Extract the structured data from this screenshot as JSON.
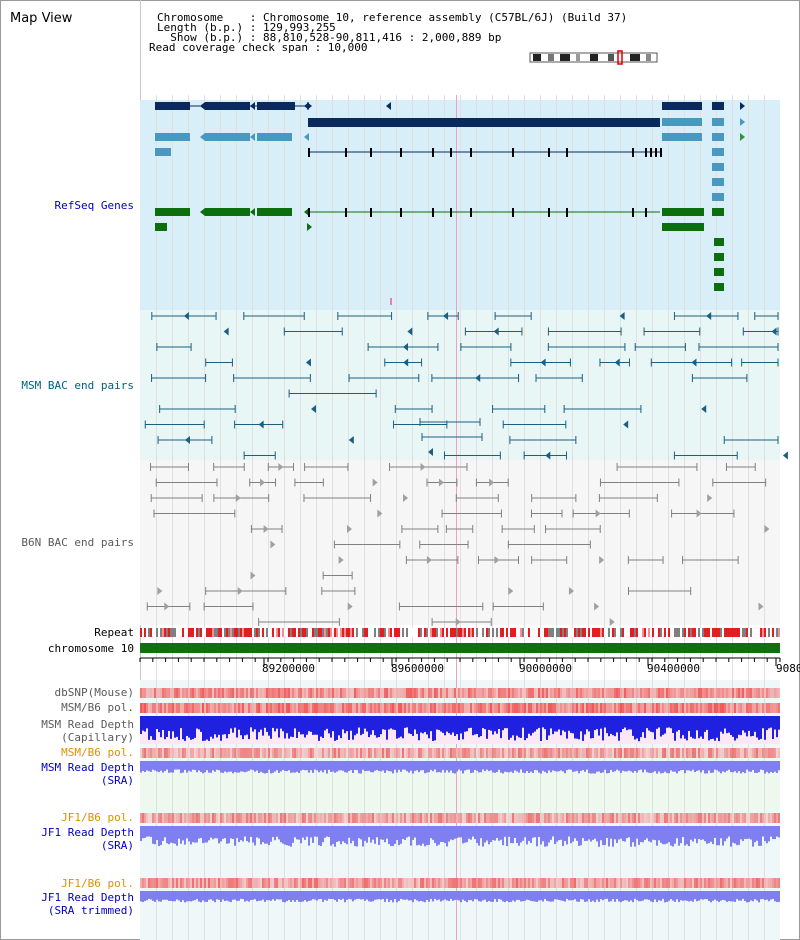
{
  "title": "Map View",
  "info": {
    "line1": "Chromosome    : Chromosome 10, reference assembly (C57BL/6J) (Build 37)",
    "line2": "Length (b.p.) : 129,993,255",
    "line3": "  Show (b.p.) : 88,810,528-90,811,416 : 2,000,889 bp",
    "line4": "Read coverage check span : 10,000"
  },
  "tracks": {
    "refseq": "RefSeq Genes",
    "msm_bac": "MSM BAC end pairs",
    "b6n_bac": "B6N BAC end pairs",
    "repeat": "Repeat",
    "chromosome": "chromosome 10",
    "dbsnp": "dbSNP(Mouse)",
    "msm_b6_pol": "MSM/B6 pol.",
    "msm_depth_cap_1": "MSM Read Depth",
    "msm_depth_cap_2": "(Capillary)",
    "msm_b6_pol_sra": "MSM/B6 pol.",
    "msm_depth_sra_1": "MSM Read Depth",
    "msm_depth_sra_2": "(SRA)",
    "jf1_pol_1": "JF1/B6 pol.",
    "jf1_depth_1": "JF1 Read Depth",
    "jf1_depth_2": "(SRA)",
    "jf1_pol_2": "JF1/B6 pol.",
    "jf1_trim_1": "JF1 Read Depth",
    "jf1_trim_2": "(SRA trimmed)"
  },
  "axis": {
    "ticks": [
      "89200000",
      "89600000",
      "90000000",
      "90400000",
      "9080"
    ]
  },
  "colors": {
    "refseq_bg": "#d8eef8",
    "bac_bg": "#e8f6f6",
    "gene_dark": "#0a2a5e",
    "gene_light": "#4a98c0",
    "gene_green": "#0d6e0d",
    "msm_pair": "#1a5f80",
    "b6n_pair": "#808080",
    "snp_red": "#e82020",
    "depth_blue": "#2020e0",
    "depth_lightblue": "#7f7ff0",
    "label_blue": "#0000c0",
    "label_teal": "#005f80",
    "label_gray": "#5a5a5a",
    "label_orange": "#e09000"
  }
}
